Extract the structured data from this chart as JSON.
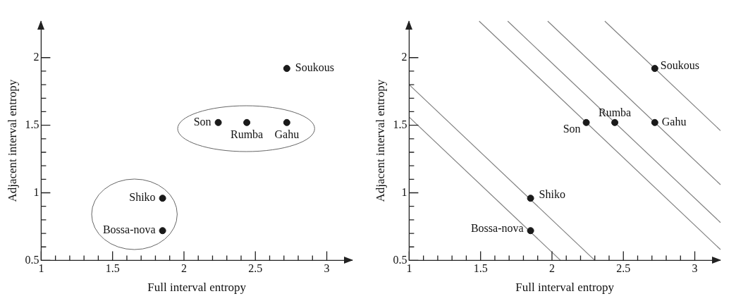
{
  "chart_data": [
    {
      "type": "scatter",
      "xlabel": "Full interval entropy",
      "ylabel": "Adjacent interval entropy",
      "marker": "circle",
      "grid": false,
      "xlim": [
        1,
        3.18
      ],
      "ylim": [
        0.5,
        2.27
      ],
      "xticks": [
        1,
        {
          "value": 1.1,
          "label": null
        },
        {
          "value": 1.2,
          "label": null
        },
        {
          "value": 1.3,
          "label": null
        },
        {
          "value": 1.4,
          "label": null
        },
        1.5,
        {
          "value": 1.6,
          "label": null
        },
        {
          "value": 1.7,
          "label": null
        },
        {
          "value": 1.8,
          "label": null
        },
        {
          "value": 1.9,
          "label": null
        },
        2,
        {
          "value": 2.1,
          "label": null
        },
        {
          "value": 2.2,
          "label": null
        },
        {
          "value": 2.3,
          "label": null
        },
        {
          "value": 2.4,
          "label": null
        },
        2.5,
        {
          "value": 2.6,
          "label": null
        },
        {
          "value": 2.7,
          "label": null
        },
        {
          "value": 2.8,
          "label": null
        },
        {
          "value": 2.9,
          "label": null
        },
        3
      ],
      "yticks": [
        0.5,
        {
          "value": 0.6,
          "label": null
        },
        {
          "value": 0.7,
          "label": null
        },
        {
          "value": 0.8,
          "label": null
        },
        {
          "value": 0.9,
          "label": null
        },
        1,
        {
          "value": 1.1,
          "label": null
        },
        {
          "value": 1.2,
          "label": null
        },
        {
          "value": 1.3,
          "label": null
        },
        {
          "value": 1.4,
          "label": null
        },
        1.5,
        {
          "value": 1.6,
          "label": null
        },
        {
          "value": 1.7,
          "label": null
        },
        {
          "value": 1.8,
          "label": null
        },
        {
          "value": 1.9,
          "label": null
        },
        2
      ],
      "series": [
        {
          "color": "#1a1a1a",
          "x": [
            2.72,
            2.24,
            2.44,
            2.72,
            1.85,
            1.85
          ],
          "values": [
            1.92,
            1.52,
            1.52,
            1.52,
            0.96,
            0.72
          ]
        }
      ],
      "annotations": [
        {
          "text": "Soukous",
          "x": 2.72,
          "y": 1.92
        },
        {
          "text": "Son",
          "x": 2.24,
          "y": 1.52
        },
        {
          "text": "Rumba",
          "x": 2.44,
          "y": 1.52
        },
        {
          "text": "Gahu",
          "x": 2.72,
          "y": 1.52
        },
        {
          "text": "Shiko",
          "x": 1.85,
          "y": 0.96
        },
        {
          "text": "Bossa-nova",
          "x": 1.85,
          "y": 0.72
        }
      ]
    },
    {
      "type": "scatter",
      "xlabel": "Full interval entropy",
      "ylabel": "Adjacent interval entropy",
      "marker": "circle",
      "grid": false,
      "line_style": "solid",
      "xlim": [
        1,
        3.18
      ],
      "ylim": [
        0.5,
        2.27
      ],
      "xticks": [
        1,
        {
          "value": 1.1,
          "label": null
        },
        {
          "value": 1.2,
          "label": null
        },
        {
          "value": 1.3,
          "label": null
        },
        {
          "value": 1.4,
          "label": null
        },
        1.5,
        {
          "value": 1.6,
          "label": null
        },
        {
          "value": 1.7,
          "label": null
        },
        {
          "value": 1.8,
          "label": null
        },
        {
          "value": 1.9,
          "label": null
        },
        2,
        {
          "value": 2.1,
          "label": null
        },
        {
          "value": 2.2,
          "label": null
        },
        {
          "value": 2.3,
          "label": null
        },
        {
          "value": 2.4,
          "label": null
        },
        2.5,
        {
          "value": 2.6,
          "label": null
        },
        {
          "value": 2.7,
          "label": null
        },
        {
          "value": 2.8,
          "label": null
        },
        {
          "value": 2.9,
          "label": null
        },
        3
      ],
      "yticks": [
        0.5,
        {
          "value": 0.6,
          "label": null
        },
        {
          "value": 0.7,
          "label": null
        },
        {
          "value": 0.8,
          "label": null
        },
        {
          "value": 0.9,
          "label": null
        },
        1,
        {
          "value": 1.1,
          "label": null
        },
        {
          "value": 1.2,
          "label": null
        },
        {
          "value": 1.3,
          "label": null
        },
        {
          "value": 1.4,
          "label": null
        },
        1.5,
        {
          "value": 1.6,
          "label": null
        },
        {
          "value": 1.7,
          "label": null
        },
        {
          "value": 1.8,
          "label": null
        },
        {
          "value": 1.9,
          "label": null
        },
        2
      ],
      "series": [
        {
          "type": "line",
          "marker": "none",
          "color": "#808080",
          "x": [
            1,
            2.06
          ],
          "values": [
            1.56,
            0.5
          ]
        },
        {
          "type": "line",
          "marker": "none",
          "color": "#808080",
          "x": [
            1,
            2.3
          ],
          "values": [
            1.8,
            0.5
          ]
        },
        {
          "type": "line",
          "marker": "none",
          "color": "#808080",
          "x": [
            1.49,
            3.18
          ],
          "values": [
            2.27,
            0.58
          ]
        },
        {
          "type": "line",
          "marker": "none",
          "color": "#808080",
          "x": [
            1.69,
            3.18
          ],
          "values": [
            2.27,
            0.78
          ]
        },
        {
          "type": "line",
          "marker": "none",
          "color": "#808080",
          "x": [
            1.97,
            3.18
          ],
          "values": [
            2.27,
            1.06
          ]
        },
        {
          "type": "line",
          "marker": "none",
          "color": "#808080",
          "x": [
            2.37,
            3.18
          ],
          "values": [
            2.27,
            1.46
          ]
        },
        {
          "color": "#1a1a1a",
          "x": [
            2.72,
            2.24,
            2.44,
            2.72,
            1.85,
            1.85
          ],
          "values": [
            1.92,
            1.52,
            1.52,
            1.52,
            0.96,
            0.72
          ]
        }
      ],
      "annotations": [
        {
          "text": "Soukous",
          "x": 2.72,
          "y": 1.92
        },
        {
          "text": "Son",
          "x": 2.24,
          "y": 1.52
        },
        {
          "text": "Rumba",
          "x": 2.44,
          "y": 1.52
        },
        {
          "text": "Gahu",
          "x": 2.72,
          "y": 1.52
        },
        {
          "text": "Shiko",
          "x": 1.85,
          "y": 0.96
        },
        {
          "text": "Bossa-nova",
          "x": 1.85,
          "y": 0.72
        }
      ]
    }
  ]
}
